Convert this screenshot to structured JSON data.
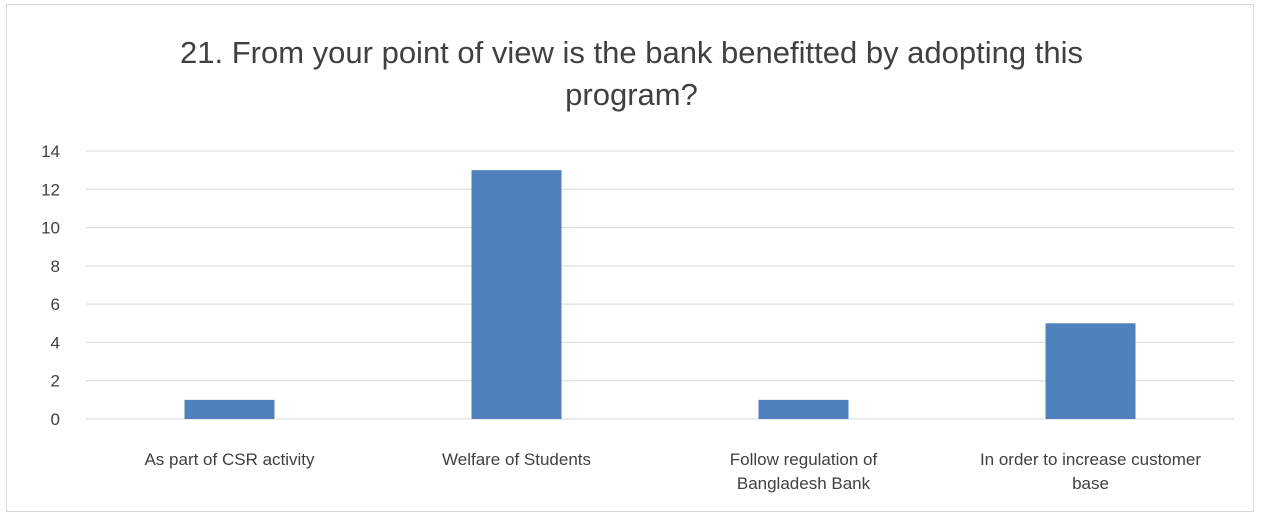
{
  "chart_data": {
    "type": "bar",
    "title": "21. From your point of view is the bank benefitted by adopting this program?",
    "categories": [
      [
        "As part of CSR activity"
      ],
      [
        "Welfare of Students"
      ],
      [
        "Follow regulation of",
        "Bangladesh Bank"
      ],
      [
        "In order to increase customer",
        "base"
      ]
    ],
    "values": [
      1,
      13,
      1,
      5
    ],
    "ylim": [
      0,
      14
    ],
    "yticks": [
      0,
      2,
      4,
      6,
      8,
      10,
      12,
      14
    ],
    "grid": true,
    "bar_color": "#4f81bd",
    "grid_color": "#d9d9d9"
  }
}
